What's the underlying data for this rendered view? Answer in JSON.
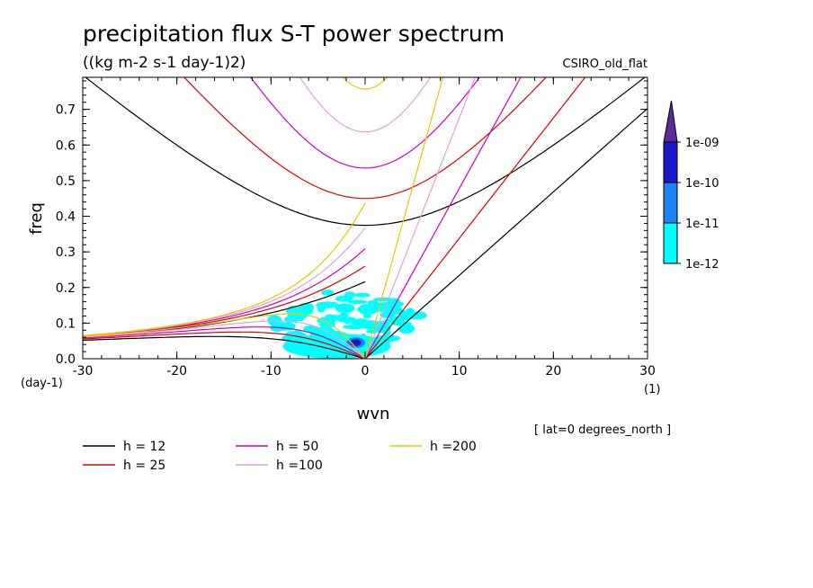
{
  "chart_data": {
    "type": "line",
    "title": "precipitation flux S-T power spectrum",
    "subtitle": "((kg m-2 s-1 day-1)2)",
    "model_label": "CSIRO_old_flat",
    "xlabel": "wvn",
    "ylabel": "freq",
    "x_unit": "(1)",
    "y_unit": "(day-1)",
    "xlim": [
      -30,
      30
    ],
    "ylim": [
      0,
      0.79
    ],
    "x_ticks": [
      "-30",
      "-20",
      "-10",
      "0",
      "10",
      "20",
      "30"
    ],
    "y_ticks": [
      "0.0",
      "0.1",
      "0.2",
      "0.3",
      "0.4",
      "0.5",
      "0.6",
      "0.7"
    ],
    "annotation": "[ lat=0 degrees_north ]",
    "colorbar": {
      "labels": [
        "1e-09",
        "1e-10",
        "1e-11",
        "1e-12"
      ],
      "colors": [
        "#5a2a9a",
        "#1a1acc",
        "#1a82f2",
        "#00ffff"
      ]
    },
    "series": [
      {
        "name": "h = 12",
        "equivalent_depth_m": 12,
        "color": "#000000"
      },
      {
        "name": "h = 25",
        "equivalent_depth_m": 25,
        "color": "#e00000"
      },
      {
        "name": "h = 50",
        "equivalent_depth_m": 50,
        "color": "#d000c0"
      },
      {
        "name": "h =100",
        "equivalent_depth_m": 100,
        "color": "#e0a0e0"
      },
      {
        "name": "h =200",
        "equivalent_depth_m": 200,
        "color": "#e8c800"
      }
    ],
    "shaded_regions": [
      {
        "level": "1e-12",
        "x": [
          -10,
          6
        ],
        "y": [
          0.02,
          0.2
        ]
      },
      {
        "level": "1e-11",
        "x": [
          -2,
          0
        ],
        "y": [
          0.03,
          0.06
        ]
      },
      {
        "level": "1e-10",
        "x": [
          -1.5,
          -0.5
        ],
        "y": [
          0.04,
          0.05
        ]
      }
    ]
  }
}
